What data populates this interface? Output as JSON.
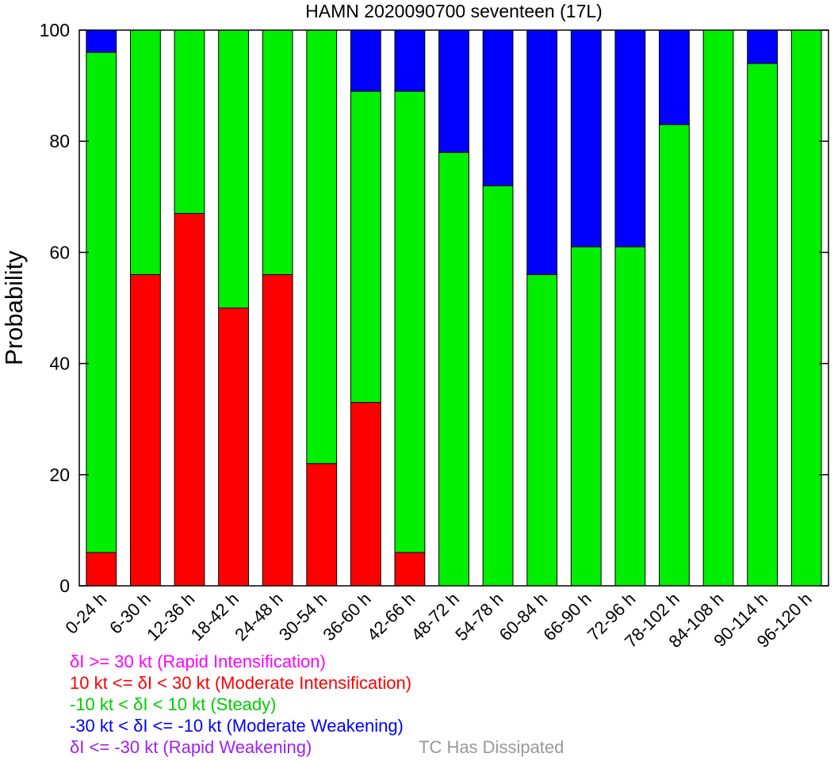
{
  "chart_data": {
    "type": "bar",
    "stacked": true,
    "title": "HAMN 2020090700 seventeen (17L)",
    "ylabel": "Probability",
    "xlabel": "",
    "ylim": [
      0,
      100
    ],
    "yticks": [
      0,
      20,
      40,
      60,
      80,
      100
    ],
    "categories": [
      "0-24 h",
      "6-30 h",
      "12-36 h",
      "18-42 h",
      "24-48 h",
      "30-54 h",
      "36-60 h",
      "42-66 h",
      "48-72 h",
      "54-78 h",
      "60-84 h",
      "66-90 h",
      "72-96 h",
      "78-102 h",
      "84-108 h",
      "90-114 h",
      "96-120 h"
    ],
    "series": [
      {
        "key": "moderate_intensification",
        "color": "#ff0000",
        "values": [
          6,
          56,
          67,
          50,
          56,
          22,
          33,
          6,
          0,
          0,
          0,
          0,
          0,
          0,
          0,
          0,
          0
        ]
      },
      {
        "key": "steady",
        "color": "#00ee00",
        "values": [
          90,
          44,
          33,
          50,
          44,
          78,
          56,
          83,
          78,
          72,
          56,
          61,
          61,
          83,
          100,
          94,
          100
        ]
      },
      {
        "key": "moderate_weakening",
        "color": "#0000ff",
        "values": [
          4,
          0,
          0,
          0,
          0,
          0,
          11,
          11,
          22,
          28,
          44,
          39,
          39,
          17,
          0,
          6,
          0
        ]
      }
    ],
    "legend": [
      {
        "text": "δI >= 30 kt (Rapid Intensification)",
        "color": "#ff00ff"
      },
      {
        "text": "10 kt <= δI < 30 kt (Moderate Intensification)",
        "color": "#ff0000"
      },
      {
        "text": "-10 kt < δI < 10 kt (Steady)",
        "color": "#00cc00"
      },
      {
        "text": "-30 kt < δI <= -10 kt (Moderate Weakening)",
        "color": "#0000ff"
      },
      {
        "text": "δI <= -30 kt (Rapid Weakening)",
        "color": "#a020f0"
      }
    ],
    "note": {
      "text": "TC Has Dissipated",
      "color": "#999999"
    },
    "grid": false,
    "legend_position": "bottom-left"
  }
}
